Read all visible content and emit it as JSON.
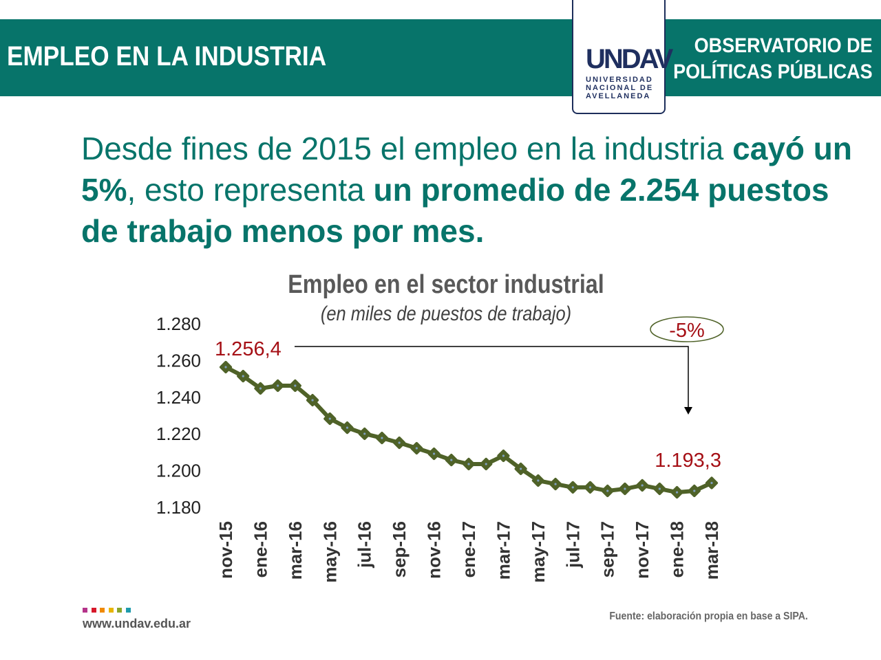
{
  "header": {
    "title": "EMPLEO EN LA INDUSTRIA",
    "observatory": [
      "OBSERVATORIO DE",
      "POLÍTICAS PÚBLICAS"
    ],
    "logo": {
      "mark": "UNDAV",
      "lines": [
        "UNIVERSIDAD",
        "NACIONAL DE",
        "AVELLANEDA"
      ]
    }
  },
  "headline": {
    "part1": "Desde fines de 2015 el empleo en la industria ",
    "part2": "cayó un 5%",
    "part3": ", esto representa ",
    "part4": "un promedio de 2.254 puestos de trabajo menos por mes."
  },
  "colors": {
    "brand": "#07746a",
    "line": "#4f6228",
    "marker_dot": "#7f9fbf",
    "highlight": "#a50f15"
  },
  "chart_data": {
    "type": "line",
    "title": "Empleo en el sector industrial",
    "subtitle": "(en miles de puestos de trabajo)",
    "categories": [
      "nov-15",
      "dic-15",
      "ene-16",
      "feb-16",
      "mar-16",
      "abr-16",
      "may-16",
      "jun-16",
      "jul-16",
      "ago-16",
      "sep-16",
      "oct-16",
      "nov-16",
      "dic-16",
      "ene-17",
      "feb-17",
      "mar-17",
      "abr-17",
      "may-17",
      "jun-17",
      "jul-17",
      "ago-17",
      "sep-17",
      "oct-17",
      "nov-17",
      "dic-17",
      "ene-18",
      "feb-18",
      "mar-18"
    ],
    "tick_labels": [
      "nov-15",
      "ene-16",
      "mar-16",
      "may-16",
      "jul-16",
      "sep-16",
      "nov-16",
      "ene-17",
      "mar-17",
      "may-17",
      "jul-17",
      "sep-17",
      "nov-17",
      "ene-18",
      "mar-18"
    ],
    "values": [
      1256.4,
      1251.5,
      1244.8,
      1246.3,
      1246.3,
      1238.4,
      1228.3,
      1223.4,
      1220.1,
      1217.8,
      1215.2,
      1212.2,
      1209.2,
      1205.8,
      1203.6,
      1203.6,
      1208.1,
      1201.0,
      1194.6,
      1192.7,
      1190.9,
      1190.9,
      1189.0,
      1190.1,
      1192.0,
      1190.1,
      1188.2,
      1189.0,
      1193.3
    ],
    "ylim": [
      1180,
      1280
    ],
    "yticks": [
      "1.280",
      "1.260",
      "1.240",
      "1.220",
      "1.200",
      "1.180"
    ],
    "yticks_values": [
      1280,
      1260,
      1240,
      1220,
      1200,
      1180
    ],
    "annotations": {
      "start": "1.256,4",
      "end": "1.193,3",
      "change": "-5%"
    },
    "grid": false
  },
  "footer": {
    "url": "www.undav.edu.ar",
    "source": "Fuente: elaboración propia en base a SIPA.",
    "swatches": [
      "#b5338a",
      "#d7182a",
      "#f08a00",
      "#e8b500",
      "#8aa62b",
      "#1e9bab"
    ]
  }
}
